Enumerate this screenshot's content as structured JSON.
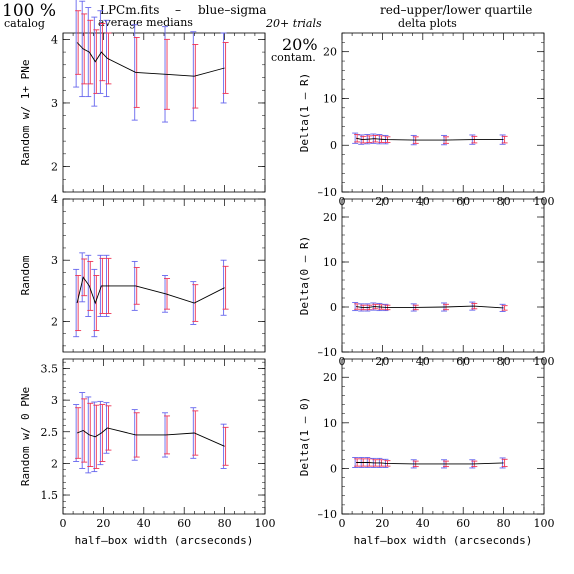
{
  "header": {
    "percent": "100 %",
    "catalog": "catalog",
    "filename": "LPCm.fits",
    "dash": "–",
    "medians": "average medians",
    "sigma_note": "blue–sigma",
    "quartile_note": "red–upper/lower quartile",
    "trials": "20+ trials",
    "contam_pct": "20%",
    "contam": "contam.",
    "delta_plots": "delta plots"
  },
  "colors": {
    "sigma": "#6666ee",
    "quartile": "#ee3355",
    "line": "#000000"
  },
  "chart_data": [
    {
      "type": "line",
      "panel": "left-top",
      "ylabel": "Random w/ 1+ PNe",
      "xlim": [
        0,
        100
      ],
      "ylim": [
        1.6,
        4.1
      ],
      "xticks": [
        "0",
        "20",
        "40",
        "60",
        "80",
        "100"
      ],
      "yticks": [
        "2",
        "3",
        "4"
      ],
      "show_xtick_labels": false,
      "x": [
        7,
        10,
        13,
        16,
        19,
        22,
        36,
        51,
        65,
        80
      ],
      "y": [
        3.95,
        3.85,
        3.8,
        3.65,
        3.8,
        3.7,
        3.48,
        3.45,
        3.42,
        3.55
      ],
      "sigma_err": [
        0.7,
        0.75,
        0.7,
        0.7,
        0.65,
        0.6,
        0.75,
        0.75,
        0.7,
        0.55
      ],
      "quartile_err": [
        0.5,
        0.55,
        0.5,
        0.5,
        0.45,
        0.4,
        0.55,
        0.55,
        0.5,
        0.4
      ]
    },
    {
      "type": "line",
      "panel": "left-middle",
      "ylabel": "Random",
      "xlim": [
        0,
        100
      ],
      "ylim": [
        1.5,
        4
      ],
      "xticks": [
        "0",
        "20",
        "40",
        "60",
        "80",
        "100"
      ],
      "yticks": [
        "2",
        "3",
        "4"
      ],
      "show_xtick_labels": false,
      "x": [
        7,
        10,
        13,
        16,
        19,
        22,
        36,
        51,
        65,
        80
      ],
      "y": [
        2.3,
        2.72,
        2.58,
        2.3,
        2.58,
        2.58,
        2.58,
        2.45,
        2.3,
        2.55
      ],
      "sigma_err": [
        0.55,
        0.4,
        0.5,
        0.55,
        0.5,
        0.5,
        0.4,
        0.3,
        0.35,
        0.45
      ],
      "quartile_err": [
        0.45,
        0.3,
        0.4,
        0.45,
        0.45,
        0.45,
        0.3,
        0.25,
        0.3,
        0.35
      ]
    },
    {
      "type": "line",
      "panel": "left-bottom",
      "ylabel": "Random w/ 0 PNe",
      "xlim": [
        0,
        100
      ],
      "ylim": [
        1.2,
        3.65
      ],
      "xticks": [
        "0",
        "20",
        "40",
        "60",
        "80",
        "100"
      ],
      "yticks": [
        "1.5",
        "2",
        "2.5",
        "3",
        "3.5"
      ],
      "xlabel": "half–box width (arcseconds)",
      "show_xtick_labels": true,
      "x": [
        7,
        10,
        13,
        16,
        19,
        22,
        36,
        51,
        65,
        80
      ],
      "y": [
        2.48,
        2.52,
        2.45,
        2.42,
        2.48,
        2.56,
        2.45,
        2.45,
        2.48,
        2.27
      ],
      "sigma_err": [
        0.45,
        0.6,
        0.6,
        0.55,
        0.5,
        0.4,
        0.4,
        0.35,
        0.4,
        0.35
      ],
      "quartile_err": [
        0.4,
        0.5,
        0.5,
        0.5,
        0.45,
        0.35,
        0.35,
        0.3,
        0.35,
        0.3
      ]
    },
    {
      "type": "line",
      "panel": "right-top",
      "ylabel": "Delta(1 – R)",
      "xlim": [
        0,
        100
      ],
      "ylim": [
        -10,
        24
      ],
      "xticks": [
        "0",
        "20",
        "40",
        "60",
        "80",
        "100"
      ],
      "yticks": [
        "–10",
        "0",
        "10",
        "20"
      ],
      "ytick_values": [
        -10,
        0,
        10,
        20
      ],
      "show_xtick_labels": true,
      "x": [
        7,
        10,
        13,
        16,
        19,
        22,
        36,
        51,
        65,
        80
      ],
      "y": [
        1.5,
        1.2,
        1.3,
        1.4,
        1.3,
        1.2,
        1.1,
        1.1,
        1.2,
        1.2
      ],
      "sigma_err": [
        1.1,
        1.0,
        1.0,
        1.0,
        1.0,
        0.9,
        1.0,
        1.0,
        1.0,
        1.0
      ],
      "quartile_err": [
        0.8,
        0.7,
        0.7,
        0.7,
        0.7,
        0.6,
        0.7,
        0.7,
        0.7,
        0.7
      ]
    },
    {
      "type": "line",
      "panel": "right-middle",
      "ylabel": "Delta(0 – R)",
      "xlim": [
        0,
        100
      ],
      "ylim": [
        -10,
        24
      ],
      "xticks": [
        "0",
        "20",
        "40",
        "60",
        "80",
        "100"
      ],
      "yticks": [
        "–10",
        "0",
        "10",
        "20"
      ],
      "ytick_values": [
        -10,
        0,
        10,
        20
      ],
      "show_xtick_labels": true,
      "x": [
        7,
        10,
        13,
        16,
        19,
        22,
        36,
        51,
        65,
        80
      ],
      "y": [
        0.1,
        -0.1,
        -0.1,
        0.1,
        0.0,
        -0.1,
        -0.1,
        0.0,
        0.2,
        -0.2
      ],
      "sigma_err": [
        0.9,
        0.8,
        0.8,
        0.8,
        0.8,
        0.7,
        0.8,
        0.9,
        0.9,
        0.8
      ],
      "quartile_err": [
        0.6,
        0.5,
        0.5,
        0.5,
        0.5,
        0.5,
        0.5,
        0.6,
        0.6,
        0.5
      ]
    },
    {
      "type": "line",
      "panel": "right-bottom",
      "ylabel": "Delta(1 – 0)",
      "xlim": [
        0,
        100
      ],
      "ylim": [
        -10,
        24
      ],
      "xticks": [
        "0",
        "20",
        "40",
        "60",
        "80",
        "100"
      ],
      "yticks": [
        "–10",
        "0",
        "10",
        "20"
      ],
      "ytick_values": [
        -10,
        0,
        10,
        20
      ],
      "xlabel": "half–box width (arcseconds)",
      "show_xtick_labels": true,
      "x": [
        7,
        10,
        13,
        16,
        19,
        22,
        36,
        51,
        65,
        80
      ],
      "y": [
        1.3,
        1.3,
        1.3,
        1.2,
        1.2,
        1.1,
        1.0,
        1.0,
        1.0,
        1.2
      ],
      "sigma_err": [
        1.1,
        1.1,
        1.1,
        1.0,
        1.0,
        0.9,
        0.9,
        0.9,
        0.9,
        1.1
      ],
      "quartile_err": [
        0.8,
        0.8,
        0.8,
        0.7,
        0.7,
        0.6,
        0.6,
        0.6,
        0.6,
        0.8
      ]
    }
  ]
}
